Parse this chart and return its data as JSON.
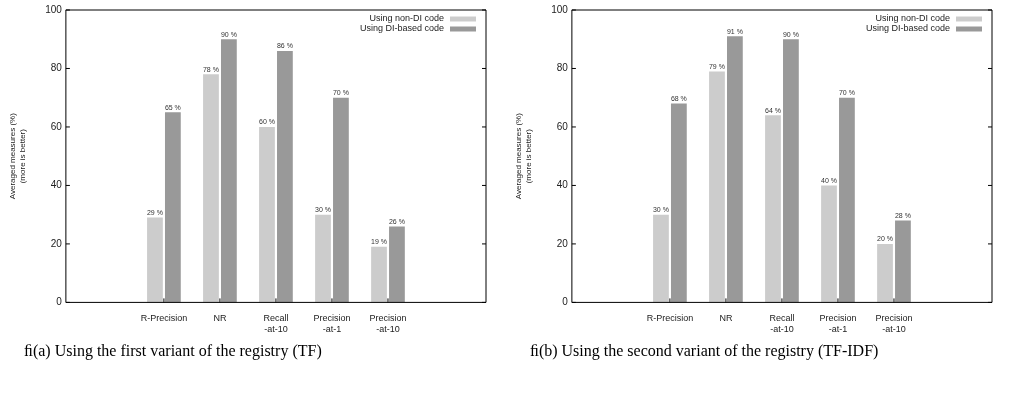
{
  "chart_data": [
    {
      "type": "bar",
      "title": "ﬁ(a) Using the first variant of the registry (TF)",
      "ylabel": "Averaged measures (%)\n(more is better)",
      "categories": [
        "R-Precision",
        "NR",
        "Recall\n-at-10",
        "Precision\n-at-1",
        "Precision\n-at-10"
      ],
      "series": [
        {
          "name": "Using non-DI code",
          "color": "#cccccc",
          "values": [
            29,
            78,
            60,
            30,
            19
          ],
          "value_labels": [
            "29 %",
            "78 %",
            "60 %",
            "30 %",
            "19 %"
          ]
        },
        {
          "name": "Using DI-based code",
          "color": "#999999",
          "values": [
            65,
            90,
            86,
            70,
            26
          ],
          "value_labels": [
            "65 %",
            "90 %",
            "86 %",
            "70 %",
            "26 %"
          ]
        }
      ],
      "ylim": [
        0,
        100
      ],
      "yticks": [
        0,
        20,
        40,
        60,
        80,
        100
      ],
      "grid": false,
      "legend": "top right"
    },
    {
      "type": "bar",
      "title": "ﬁ(b) Using the second variant of the registry (TF-IDF)",
      "ylabel": "Averaged measures (%)\n(more is better)",
      "categories": [
        "R-Precision",
        "NR",
        "Recall\n-at-10",
        "Precision\n-at-1",
        "Precision\n-at-10"
      ],
      "series": [
        {
          "name": "Using non-DI code",
          "color": "#cccccc",
          "values": [
            30,
            79,
            64,
            40,
            20
          ],
          "value_labels": [
            "30 %",
            "79 %",
            "64 %",
            "40 %",
            "20 %"
          ]
        },
        {
          "name": "Using DI-based code",
          "color": "#999999",
          "values": [
            68,
            91,
            90,
            70,
            28
          ],
          "value_labels": [
            "68 %",
            "91 %",
            "90 %",
            "70 %",
            "28 %"
          ]
        }
      ],
      "ylim": [
        0,
        100
      ],
      "yticks": [
        0,
        20,
        40,
        60,
        80,
        100
      ],
      "grid": false,
      "legend": "top right"
    }
  ]
}
